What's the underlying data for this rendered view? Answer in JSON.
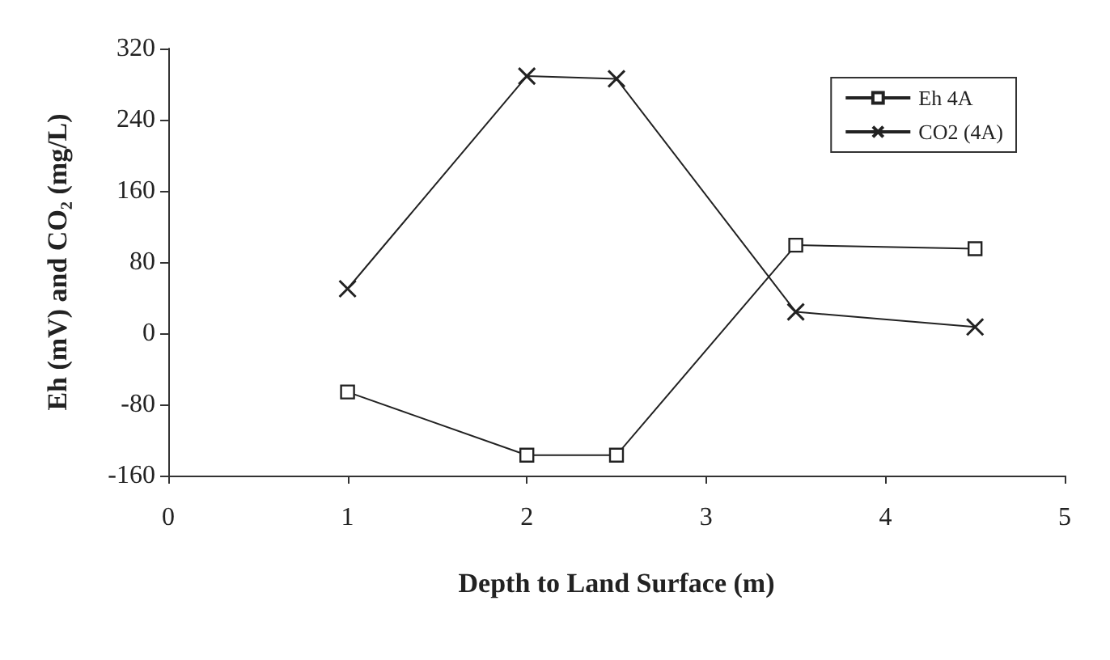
{
  "chart_data": {
    "type": "line",
    "xlabel": "Depth to Land Surface (m)",
    "ylabel": "Eh (mV) and CO₂ (mg/L)",
    "xlim": [
      0,
      5
    ],
    "xticks": [
      0,
      1,
      2,
      3,
      4,
      5
    ],
    "ylim": [
      -160,
      320
    ],
    "yticks": [
      -160,
      -80,
      0,
      80,
      160,
      240,
      320
    ],
    "grid": false,
    "legend": "top right",
    "line_style": "solid",
    "series": [
      {
        "name": "Eh 4A",
        "color": "#222222",
        "marker": "square",
        "x": [
          1,
          2,
          2.5,
          3.5,
          4.5
        ],
        "values": [
          -66,
          -137,
          -137,
          99,
          95
        ]
      },
      {
        "name": "CO2 (4A)",
        "color": "#222222",
        "marker": "cross",
        "x": [
          1,
          2,
          2.5,
          3.5,
          4.5
        ],
        "values": [
          50,
          289,
          286,
          24,
          7
        ]
      }
    ]
  }
}
